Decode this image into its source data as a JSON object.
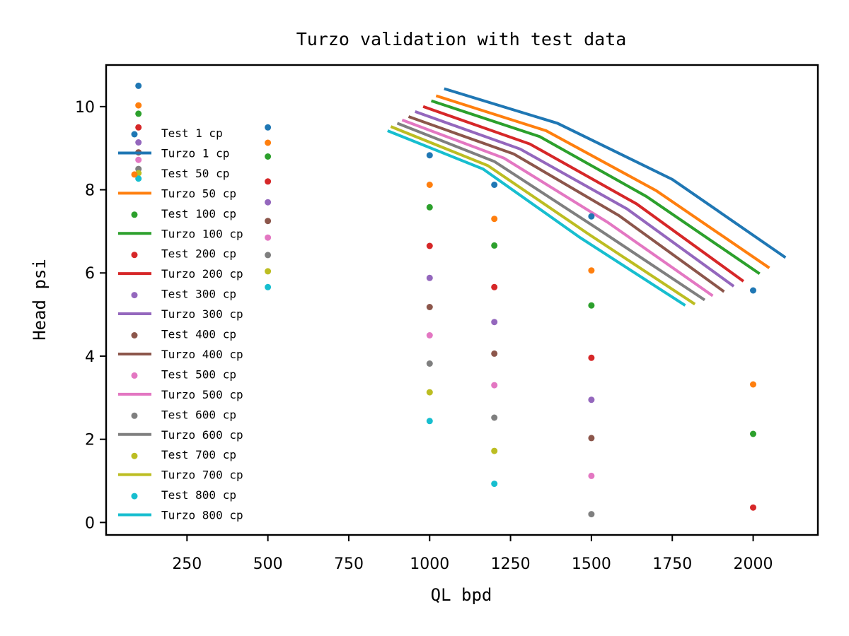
{
  "chart_data": {
    "type": "line",
    "title": "Turzo validation with test data",
    "xlabel": "QL bpd",
    "ylabel": "Head psi",
    "xlim": [
      0,
      2200
    ],
    "ylim": [
      -0.3,
      11.0
    ],
    "xticks": [
      250,
      500,
      750,
      1000,
      1250,
      1500,
      1750,
      2000
    ],
    "yticks": [
      0,
      2,
      4,
      6,
      8,
      10
    ],
    "grid": false,
    "legend_position": "left",
    "test_x": [
      100,
      500,
      1000,
      1200,
      1500,
      2000
    ],
    "series": [
      {
        "viscosity": "1 cp",
        "test_name": "Test 1 cp",
        "turzo_name": "Turzo 1 cp",
        "color": "#1f77b4",
        "test_y": [
          10.5,
          9.5,
          8.83,
          8.12,
          7.36,
          5.58
        ],
        "turzo": [
          [
            1045,
            10.43
          ],
          [
            1395,
            9.6
          ],
          [
            1750,
            8.25
          ],
          [
            2100,
            6.37
          ]
        ]
      },
      {
        "viscosity": "50 cp",
        "test_name": "Test 50 cp",
        "turzo_name": "Turzo 50 cp",
        "color": "#ff7f0e",
        "test_y": [
          10.03,
          9.13,
          8.12,
          7.3,
          6.06,
          3.32
        ],
        "turzo": [
          [
            1020,
            10.26
          ],
          [
            1360,
            9.42
          ],
          [
            1700,
            7.98
          ],
          [
            2050,
            6.12
          ]
        ]
      },
      {
        "viscosity": "100 cp",
        "test_name": "Test 100 cp",
        "turzo_name": "Turzo 100 cp",
        "color": "#2ca02c",
        "test_y": [
          9.83,
          8.8,
          7.58,
          6.66,
          5.22,
          2.13
        ],
        "turzo": [
          [
            1005,
            10.14
          ],
          [
            1340,
            9.28
          ],
          [
            1670,
            7.84
          ],
          [
            2020,
            5.98
          ]
        ]
      },
      {
        "viscosity": "200 cp",
        "test_name": "Test 200 cp",
        "turzo_name": "Turzo 200 cp",
        "color": "#d62728",
        "test_y": [
          9.5,
          8.2,
          6.65,
          5.66,
          3.96,
          0.36
        ],
        "turzo": [
          [
            980,
            10.0
          ],
          [
            1310,
            9.1
          ],
          [
            1640,
            7.66
          ],
          [
            1970,
            5.8
          ]
        ]
      },
      {
        "viscosity": "300 cp",
        "test_name": "Test 300 cp",
        "turzo_name": "Turzo 300 cp",
        "color": "#9467bd",
        "test_y": [
          9.14,
          7.7,
          5.88,
          4.82,
          2.95
        ],
        "turzo": [
          [
            955,
            9.88
          ],
          [
            1280,
            8.98
          ],
          [
            1610,
            7.54
          ],
          [
            1940,
            5.68
          ]
        ]
      },
      {
        "viscosity": "400 cp",
        "test_name": "Test 400 cp",
        "turzo_name": "Turzo 400 cp",
        "color": "#8c564b",
        "test_y": [
          8.9,
          7.25,
          5.18,
          4.06,
          2.03
        ],
        "turzo": [
          [
            935,
            9.76
          ],
          [
            1260,
            8.86
          ],
          [
            1585,
            7.38
          ],
          [
            1910,
            5.55
          ]
        ]
      },
      {
        "viscosity": "500 cp",
        "test_name": "Test 500 cp",
        "turzo_name": "Turzo 500 cp",
        "color": "#e377c2",
        "test_y": [
          8.72,
          6.85,
          4.5,
          3.3,
          1.12
        ],
        "turzo": [
          [
            915,
            9.68
          ],
          [
            1230,
            8.76
          ],
          [
            1550,
            7.22
          ],
          [
            1875,
            5.45
          ]
        ]
      },
      {
        "viscosity": "600 cp",
        "test_name": "Test 600 cp",
        "turzo_name": "Turzo 600 cp",
        "color": "#7f7f7f",
        "test_y": [
          8.5,
          6.43,
          3.82,
          2.52,
          0.2
        ],
        "turzo": [
          [
            900,
            9.6
          ],
          [
            1200,
            8.68
          ],
          [
            1520,
            7.06
          ],
          [
            1850,
            5.35
          ]
        ]
      },
      {
        "viscosity": "700 cp",
        "test_name": "Test 700 cp",
        "turzo_name": "Turzo 700 cp",
        "color": "#bcbd22",
        "test_y": [
          8.4,
          6.04,
          3.13,
          1.72
        ],
        "turzo": [
          [
            880,
            9.52
          ],
          [
            1180,
            8.58
          ],
          [
            1490,
            6.94
          ],
          [
            1820,
            5.25
          ]
        ]
      },
      {
        "viscosity": "800 cp",
        "test_name": "Test 800 cp",
        "turzo_name": "Turzo 800 cp",
        "color": "#17becf",
        "test_y": [
          8.27,
          5.66,
          2.44,
          0.93
        ],
        "turzo": [
          [
            870,
            9.42
          ],
          [
            1165,
            8.5
          ],
          [
            1465,
            6.85
          ],
          [
            1790,
            5.22
          ]
        ]
      }
    ]
  }
}
